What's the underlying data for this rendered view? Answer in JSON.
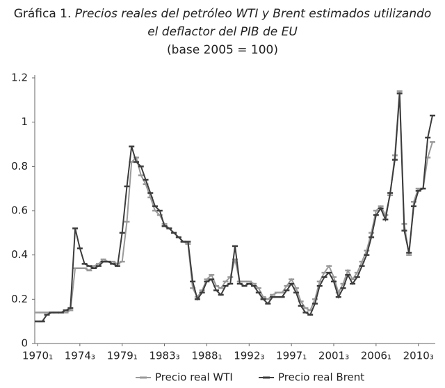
{
  "chart_data": {
    "type": "line",
    "title_label": "Gráfica 1.",
    "title": "Precios reales del petróleo WTI y Brent estimados utilizando el deflactor del PIB de EU",
    "subtitle": "(base 2005 = 100)",
    "categories": [
      "1970₁",
      null,
      null,
      null,
      null,
      null,
      null,
      null,
      null,
      "1974₃",
      null,
      null,
      null,
      null,
      null,
      null,
      null,
      null,
      "1979₁",
      null,
      null,
      null,
      null,
      null,
      null,
      null,
      null,
      "1983₃",
      null,
      null,
      null,
      null,
      null,
      null,
      null,
      null,
      "1988₁",
      null,
      null,
      null,
      null,
      null,
      null,
      null,
      null,
      "1992₃",
      null,
      null,
      null,
      null,
      null,
      null,
      null,
      null,
      "1997₁",
      null,
      null,
      null,
      null,
      null,
      null,
      null,
      null,
      "2001₃",
      null,
      null,
      null,
      null,
      null,
      null,
      null,
      null,
      "2006₁",
      null,
      null,
      null,
      null,
      null,
      null,
      null,
      null,
      "2010₃",
      null,
      null,
      null
    ],
    "series": [
      {
        "name": "Precio real WTI",
        "color": "#9a9a9a",
        "values": [
          0.14,
          0.14,
          0.14,
          0.14,
          0.14,
          0.14,
          0.14,
          0.15,
          0.34,
          0.34,
          0.34,
          0.33,
          0.35,
          0.36,
          0.38,
          0.37,
          0.37,
          0.36,
          0.37,
          0.55,
          0.82,
          0.84,
          0.76,
          0.72,
          0.66,
          0.6,
          0.58,
          0.54,
          0.52,
          0.5,
          0.48,
          0.46,
          0.45,
          0.25,
          0.21,
          0.24,
          0.29,
          0.31,
          0.26,
          0.25,
          0.28,
          0.3,
          0.38,
          0.28,
          0.28,
          0.28,
          0.27,
          0.25,
          0.21,
          0.2,
          0.22,
          0.23,
          0.23,
          0.26,
          0.29,
          0.25,
          0.19,
          0.16,
          0.15,
          0.2,
          0.28,
          0.32,
          0.35,
          0.3,
          0.23,
          0.27,
          0.33,
          0.29,
          0.32,
          0.37,
          0.42,
          0.5,
          0.6,
          0.62,
          0.58,
          0.67,
          0.85,
          1.14,
          0.54,
          0.4,
          0.64,
          0.7,
          0.7,
          0.84,
          0.91
        ]
      },
      {
        "name": "Precio real Brent",
        "color": "#3c3c3c",
        "values": [
          0.1,
          0.1,
          0.13,
          0.14,
          0.14,
          0.14,
          0.15,
          0.16,
          0.52,
          0.43,
          0.36,
          0.35,
          0.34,
          0.35,
          0.37,
          0.37,
          0.36,
          0.35,
          0.5,
          0.71,
          0.89,
          0.82,
          0.8,
          0.74,
          0.68,
          0.62,
          0.6,
          0.53,
          0.52,
          0.5,
          0.48,
          0.46,
          0.46,
          0.28,
          0.2,
          0.23,
          0.28,
          0.29,
          0.24,
          0.22,
          0.26,
          0.27,
          0.44,
          0.27,
          0.26,
          0.27,
          0.26,
          0.23,
          0.2,
          0.18,
          0.21,
          0.21,
          0.21,
          0.24,
          0.27,
          0.23,
          0.17,
          0.14,
          0.13,
          0.18,
          0.26,
          0.3,
          0.32,
          0.28,
          0.21,
          0.25,
          0.31,
          0.27,
          0.3,
          0.35,
          0.4,
          0.48,
          0.58,
          0.61,
          0.56,
          0.68,
          0.83,
          1.13,
          0.51,
          0.41,
          0.62,
          0.69,
          0.7,
          0.93,
          1.03
        ]
      }
    ],
    "ylim": [
      0,
      1.2
    ],
    "yticks": [
      0,
      0.2,
      0.4,
      0.6,
      0.8,
      1,
      1.2
    ],
    "legend": "bottom"
  }
}
